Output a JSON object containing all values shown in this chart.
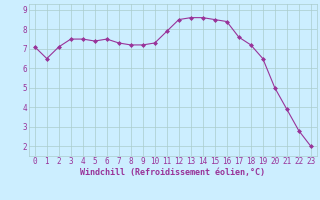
{
  "x": [
    0,
    1,
    2,
    3,
    4,
    5,
    6,
    7,
    8,
    9,
    10,
    11,
    12,
    13,
    14,
    15,
    16,
    17,
    18,
    19,
    20,
    21,
    22,
    23
  ],
  "y": [
    7.1,
    6.5,
    7.1,
    7.5,
    7.5,
    7.4,
    7.5,
    7.3,
    7.2,
    7.2,
    7.3,
    7.9,
    8.5,
    8.6,
    8.6,
    8.5,
    8.4,
    7.6,
    7.2,
    6.5,
    5.0,
    3.9,
    2.8,
    2.0
  ],
  "line_color": "#993399",
  "marker": "D",
  "marker_size": 2.0,
  "bg_color": "#cceeff",
  "grid_color": "#aacccc",
  "xlabel": "Windchill (Refroidissement éolien,°C)",
  "xlabel_color": "#993399",
  "tick_color": "#993399",
  "ylim": [
    1.5,
    9.3
  ],
  "xlim": [
    -0.5,
    23.5
  ],
  "yticks": [
    2,
    3,
    4,
    5,
    6,
    7,
    8,
    9
  ],
  "xticks": [
    0,
    1,
    2,
    3,
    4,
    5,
    6,
    7,
    8,
    9,
    10,
    11,
    12,
    13,
    14,
    15,
    16,
    17,
    18,
    19,
    20,
    21,
    22,
    23
  ],
  "xtick_labels": [
    "0",
    "1",
    "2",
    "3",
    "4",
    "5",
    "6",
    "7",
    "8",
    "9",
    "10",
    "11",
    "12",
    "13",
    "14",
    "15",
    "16",
    "17",
    "18",
    "19",
    "20",
    "21",
    "22",
    "23"
  ],
  "tick_fontsize": 5.5,
  "xlabel_fontsize": 6.0,
  "linewidth": 0.8
}
